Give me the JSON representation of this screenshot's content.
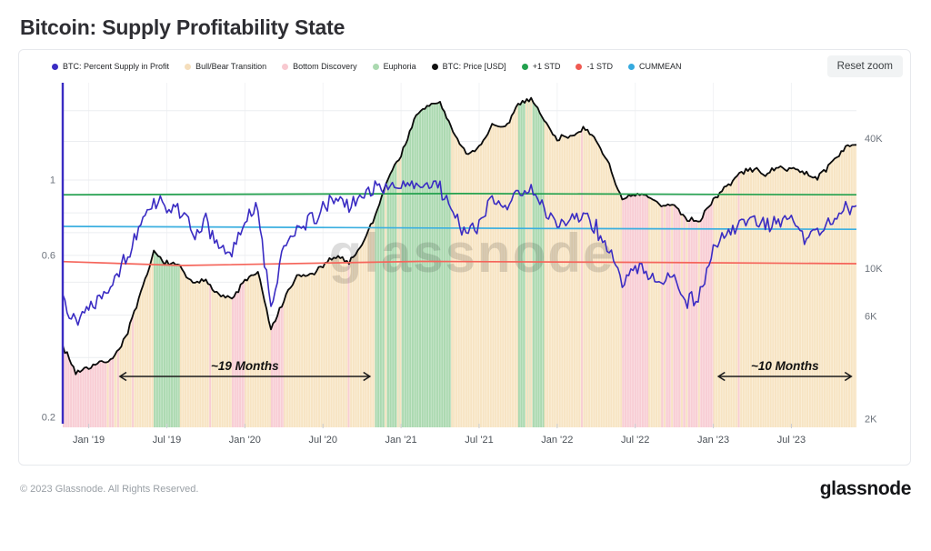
{
  "page": {
    "title": "Bitcoin: Supply Profitability State"
  },
  "toolbar": {
    "reset_zoom_label": "Reset zoom"
  },
  "watermark": "glassnode",
  "footer": {
    "copyright": "© 2023 Glassnode. All Rights Reserved.",
    "logo": "glassnode"
  },
  "legend": [
    {
      "label": "BTC: Percent Supply in Profit",
      "color": "#3A2CC3"
    },
    {
      "label": "Bull/Bear Transition",
      "color": "#F5DEBC"
    },
    {
      "label": "Bottom Discovery",
      "color": "#F8C9D0"
    },
    {
      "label": "Euphoria",
      "color": "#ABD9B0"
    },
    {
      "label": "BTC: Price [USD]",
      "color": "#111111"
    },
    {
      "label": "+1 STD",
      "color": "#23A14E"
    },
    {
      "label": "-1 STD",
      "color": "#F05A52"
    },
    {
      "label": "CUMMEAN",
      "color": "#35AADF"
    }
  ],
  "chart_data": {
    "type": "line",
    "title": "Bitcoin: Supply Profitability State",
    "x_axis": {
      "start_month": "2018-11",
      "months_count": 62,
      "ticks": [
        {
          "label": "Jan '19",
          "month": 2
        },
        {
          "label": "Jul '19",
          "month": 8
        },
        {
          "label": "Jan '20",
          "month": 14
        },
        {
          "label": "Jul '20",
          "month": 20
        },
        {
          "label": "Jan '21",
          "month": 26
        },
        {
          "label": "Jul '21",
          "month": 32
        },
        {
          "label": "Jan '22",
          "month": 38
        },
        {
          "label": "Jul '22",
          "month": 44
        },
        {
          "label": "Jan '23",
          "month": 50
        },
        {
          "label": "Jul '23",
          "month": 56
        }
      ]
    },
    "left_axis": {
      "label": "BTC: Percent Supply in Profit",
      "scale": "log",
      "ticks": [
        {
          "label": "1",
          "value": 1
        },
        {
          "label": "0.6",
          "value": 0.6
        },
        {
          "label": "0.2",
          "value": 0.2
        }
      ],
      "grid_values": [
        1.6,
        1.3,
        1,
        0.9,
        0.8,
        0.7,
        0.6,
        0.5,
        0.4,
        0.3,
        0.2
      ]
    },
    "right_axis": {
      "label": "BTC: Price [USD]",
      "scale": "log",
      "ticks": [
        {
          "label": "40K",
          "value": 40000
        },
        {
          "label": "10K",
          "value": 10000
        },
        {
          "label": "6K",
          "value": 6000
        },
        {
          "label": "2K",
          "value": 2000
        }
      ]
    },
    "series": [
      {
        "name": "BTC: Percent Supply in Profit",
        "axis": "left",
        "color": "#3A2CC3",
        "monthly_values": [
          0.46,
          0.38,
          0.43,
          0.46,
          0.52,
          0.6,
          0.72,
          0.88,
          0.83,
          0.82,
          0.7,
          0.75,
          0.63,
          0.6,
          0.76,
          0.82,
          0.42,
          0.63,
          0.74,
          0.75,
          0.82,
          0.88,
          0.84,
          0.9,
          0.95,
          0.97,
          0.95,
          0.97,
          0.98,
          0.96,
          0.8,
          0.7,
          0.73,
          0.88,
          0.82,
          0.94,
          0.93,
          0.82,
          0.73,
          0.78,
          0.8,
          0.72,
          0.62,
          0.5,
          0.55,
          0.53,
          0.5,
          0.52,
          0.44,
          0.46,
          0.62,
          0.69,
          0.74,
          0.77,
          0.72,
          0.76,
          0.75,
          0.68,
          0.7,
          0.76,
          0.82,
          0.84
        ]
      },
      {
        "name": "BTC: Price [USD]",
        "axis": "right",
        "color": "#0b0b0b",
        "monthly_values": [
          4400,
          3300,
          3500,
          3650,
          3900,
          5100,
          7600,
          11800,
          10600,
          10200,
          8400,
          8900,
          7600,
          7200,
          8800,
          9600,
          5200,
          7100,
          9200,
          9300,
          10200,
          11500,
          10700,
          12900,
          17500,
          26500,
          33500,
          49000,
          57000,
          59000,
          43000,
          34000,
          36500,
          46000,
          44500,
          58000,
          62000,
          48500,
          40000,
          41500,
          44500,
          39000,
          30500,
          20500,
          22000,
          21500,
          19500,
          19800,
          16800,
          16800,
          21000,
          23800,
          27500,
          29000,
          27500,
          29000,
          29500,
          27500,
          26500,
          30500,
          36000,
          37500
        ]
      },
      {
        "name": "+1 STD",
        "axis": "left",
        "color": "#23A14E",
        "points": [
          [
            0,
            0.905
          ],
          [
            0.5,
            0.912
          ],
          [
            1,
            0.905
          ]
        ]
      },
      {
        "name": "-1 STD",
        "axis": "left",
        "color": "#F5655B",
        "points": [
          [
            0,
            0.575
          ],
          [
            0.15,
            0.56
          ],
          [
            0.45,
            0.576
          ],
          [
            0.75,
            0.572
          ],
          [
            1,
            0.567
          ]
        ]
      },
      {
        "name": "CUMMEAN",
        "axis": "left",
        "color": "#3BAFE0",
        "points": [
          [
            0,
            0.73
          ],
          [
            0.3,
            0.725
          ],
          [
            0.6,
            0.72
          ],
          [
            1,
            0.716
          ]
        ]
      }
    ],
    "bands": [
      {
        "from": 0,
        "to": 3,
        "state": "Bottom Discovery"
      },
      {
        "from": 4,
        "to": 6,
        "state": "Bull/Bear Transition"
      },
      {
        "from": 7,
        "to": 8,
        "state": "Euphoria"
      },
      {
        "from": 9,
        "to": 12,
        "state": "Bull/Bear Transition"
      },
      {
        "from": 13,
        "to": 13,
        "state": "Bottom Discovery"
      },
      {
        "from": 14,
        "to": 15,
        "state": "Bull/Bear Transition"
      },
      {
        "from": 16,
        "to": 16,
        "state": "Bottom Discovery"
      },
      {
        "from": 17,
        "to": 23,
        "state": "Bull/Bear Transition"
      },
      {
        "from": 24,
        "to": 29,
        "state": "Euphoria"
      },
      {
        "from": 30,
        "to": 34,
        "state": "Bull/Bear Transition"
      },
      {
        "from": 35,
        "to": 36,
        "state": "Euphoria"
      },
      {
        "from": 37,
        "to": 42,
        "state": "Bull/Bear Transition"
      },
      {
        "from": 43,
        "to": 44,
        "state": "Bottom Discovery"
      },
      {
        "from": 45,
        "to": 45,
        "state": "Bull/Bear Transition"
      },
      {
        "from": 46,
        "to": 49,
        "state": "Bottom Discovery"
      },
      {
        "from": 50,
        "to": 61,
        "state": "Bull/Bear Transition"
      }
    ],
    "band_colors": {
      "Bottom Discovery": {
        "main": "#F8CDD4",
        "light": "#FBE2E6"
      },
      "Bull/Bear Transition": {
        "main": "#F7E4C3",
        "light": "#FBF0DC"
      },
      "Euphoria": {
        "main": "#ABD9B0",
        "light": "#CFE9D2"
      }
    },
    "annotations": [
      {
        "label": "~19 Months",
        "from_month": 4.4,
        "to_month": 23.6
      },
      {
        "label": "~10 Months",
        "from_month": 50.4,
        "to_month": 60.6
      }
    ],
    "legend_position": "top",
    "grid": true
  }
}
